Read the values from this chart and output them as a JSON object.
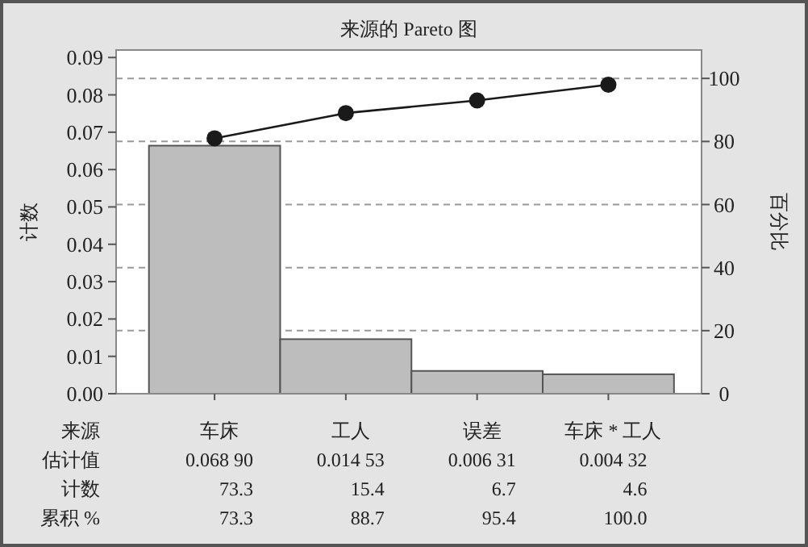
{
  "chart_data": {
    "type": "bar",
    "title": "来源的 Pareto 图",
    "ylabel": "计数",
    "y2label": "百分比",
    "categories": [
      "车床",
      "工人",
      "误差",
      "车床 * 工人"
    ],
    "series": [
      {
        "color": "#bdbdbd",
        "values": [
          0.0664,
          0.0146,
          0.0061,
          0.0052
        ]
      },
      {
        "type": "line",
        "axis": "y2",
        "color": "#1a1a1a",
        "marker": "circle",
        "values": [
          81,
          89,
          93,
          98
        ]
      }
    ],
    "ylim": [
      0,
      0.092
    ],
    "yticks": [
      {
        "value": 0,
        "label": "0.00"
      },
      {
        "value": 0.01,
        "label": "0.01"
      },
      {
        "value": 0.02,
        "label": "0.02"
      },
      {
        "value": 0.03,
        "label": "0.03"
      },
      {
        "value": 0.04,
        "label": "0.04"
      },
      {
        "value": 0.05,
        "label": "0.05"
      },
      {
        "value": 0.06,
        "label": "0.06"
      },
      {
        "value": 0.07,
        "label": "0.07"
      },
      {
        "value": 0.08,
        "label": "0.08"
      },
      {
        "value": 0.09,
        "label": "0.09"
      }
    ],
    "y2lim": [
      0,
      109
    ],
    "y2ticks": [
      0,
      20,
      40,
      60,
      80,
      100
    ],
    "ref_lines": [
      {
        "axis": "y2",
        "value": 20,
        "color": "#999999",
        "line_style": "dashed"
      },
      {
        "axis": "y2",
        "value": 40,
        "color": "#999999",
        "line_style": "dashed"
      },
      {
        "axis": "y2",
        "value": 60,
        "color": "#999999",
        "line_style": "dashed"
      },
      {
        "axis": "y2",
        "value": 80,
        "color": "#999999",
        "line_style": "dashed"
      },
      {
        "axis": "y2",
        "value": 100,
        "color": "#999999",
        "line_style": "dashed"
      }
    ],
    "annotations": [
      "来源",
      "估计值",
      "0.068 90",
      "0.014 53",
      "0.006 31",
      "0.004 32",
      "计数",
      "73.3",
      "15.4",
      "6.7",
      "4.6",
      "累积 %",
      "73.3",
      "88.7",
      "95.4",
      "100.0"
    ]
  }
}
